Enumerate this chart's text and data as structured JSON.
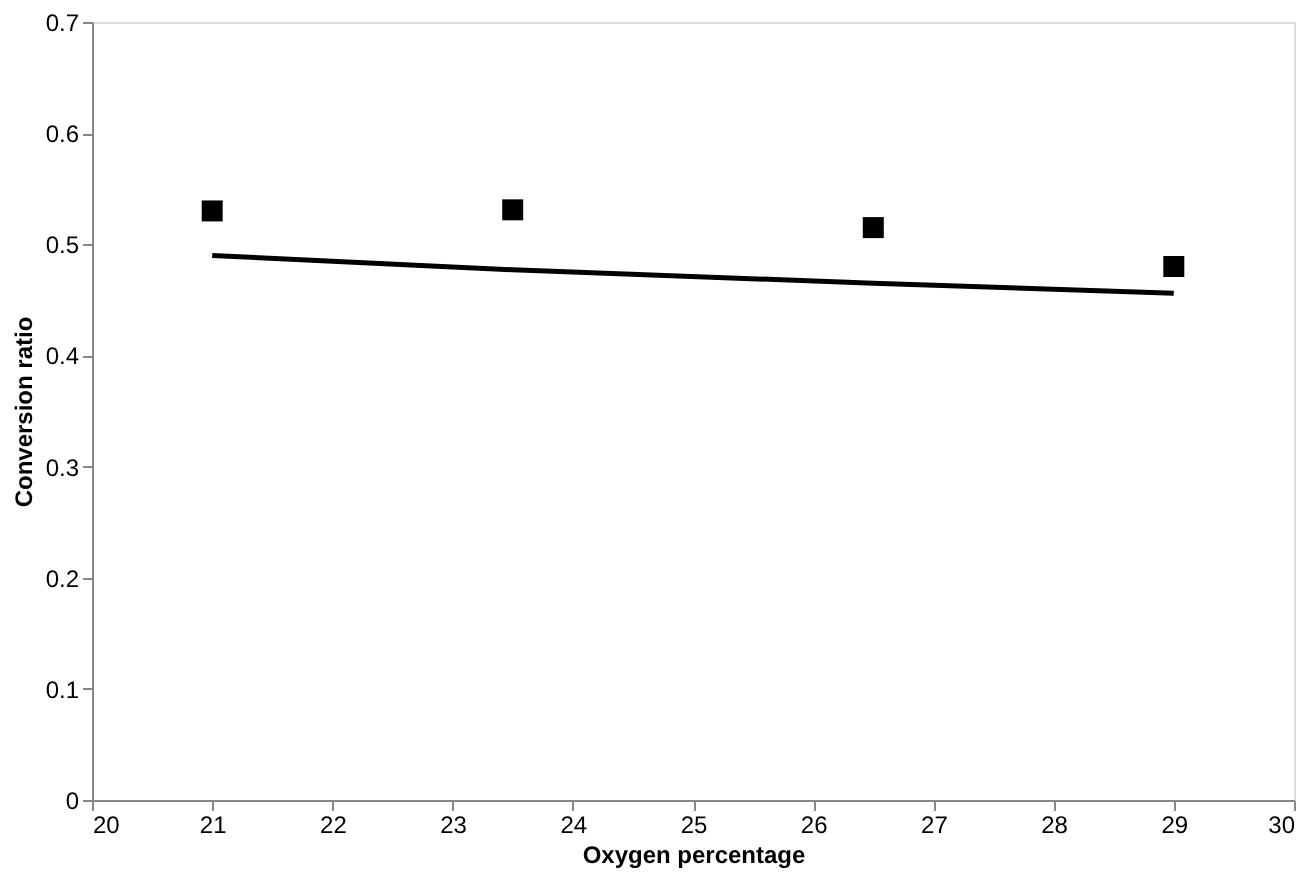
{
  "chart_data": {
    "type": "scatter",
    "xlabel": "Oxygen percentage",
    "ylabel": "Conversion ratio",
    "xlim": [
      20,
      30
    ],
    "xticks": [
      20,
      21,
      22,
      23,
      24,
      25,
      26,
      27,
      28,
      29,
      30
    ],
    "ylim": [
      0,
      0.7
    ],
    "yticks": [
      0,
      0.1,
      0.2,
      0.3,
      0.4,
      0.5,
      0.6,
      0.7
    ],
    "grid": false,
    "series": [
      {
        "type": "scatter",
        "marker": "square",
        "color": "#000000",
        "x": [
          21,
          23.5,
          26.5,
          29
        ],
        "values": [
          0.53,
          0.531,
          0.515,
          0.48
        ]
      },
      {
        "type": "line",
        "color": "#000000",
        "x": [
          21,
          23.5,
          26.5,
          29
        ],
        "values": [
          0.49,
          0.477,
          0.465,
          0.456
        ]
      }
    ]
  }
}
